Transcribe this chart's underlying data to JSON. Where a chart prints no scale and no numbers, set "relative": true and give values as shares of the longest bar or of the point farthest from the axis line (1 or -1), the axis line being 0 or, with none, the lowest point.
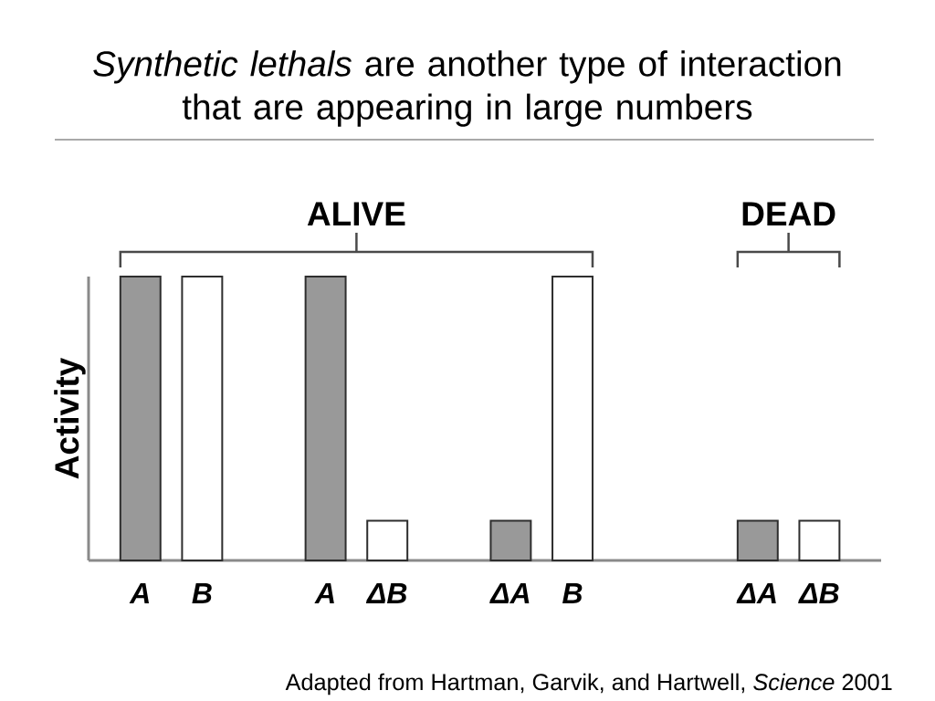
{
  "chart_data": {
    "type": "bar",
    "title": "*Synthetic lethals* are another type of interaction that are appearing in large numbers",
    "ylabel": "Activity",
    "relative": true,
    "categories": [
      "A",
      "B",
      null,
      "A",
      "ΔB",
      null,
      "ΔA",
      "B",
      null,
      null,
      "ΔA",
      "ΔB"
    ],
    "values": [
      1,
      1,
      null,
      1,
      0.14,
      null,
      0.14,
      1,
      null,
      null,
      0.14,
      0.14
    ],
    "colors": [
      "#999999",
      "#ffffff",
      null,
      "#999999",
      "#ffffff",
      null,
      "#999999",
      "#ffffff",
      null,
      null,
      "#999999",
      "#ffffff"
    ],
    "annotations": [
      "ALIVE",
      "DEAD",
      "Adapted from Hartman, Garvik, and Hartwell, *Science* 2001"
    ]
  }
}
